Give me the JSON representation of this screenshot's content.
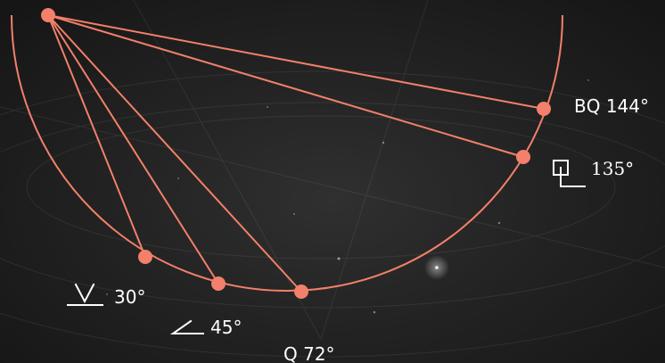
{
  "colors": {
    "accent": "#f2806a",
    "text": "#ffffff",
    "background": "#222222"
  },
  "labels": {
    "bq": "BQ 144°",
    "right_angle": "135°",
    "right_symbol": "right-angle-symbol",
    "v": "30°",
    "v_symbol": "v-angle-symbol",
    "angle": "45°",
    "angle_symbol": "angle-symbol",
    "q": "Q 72°"
  }
}
